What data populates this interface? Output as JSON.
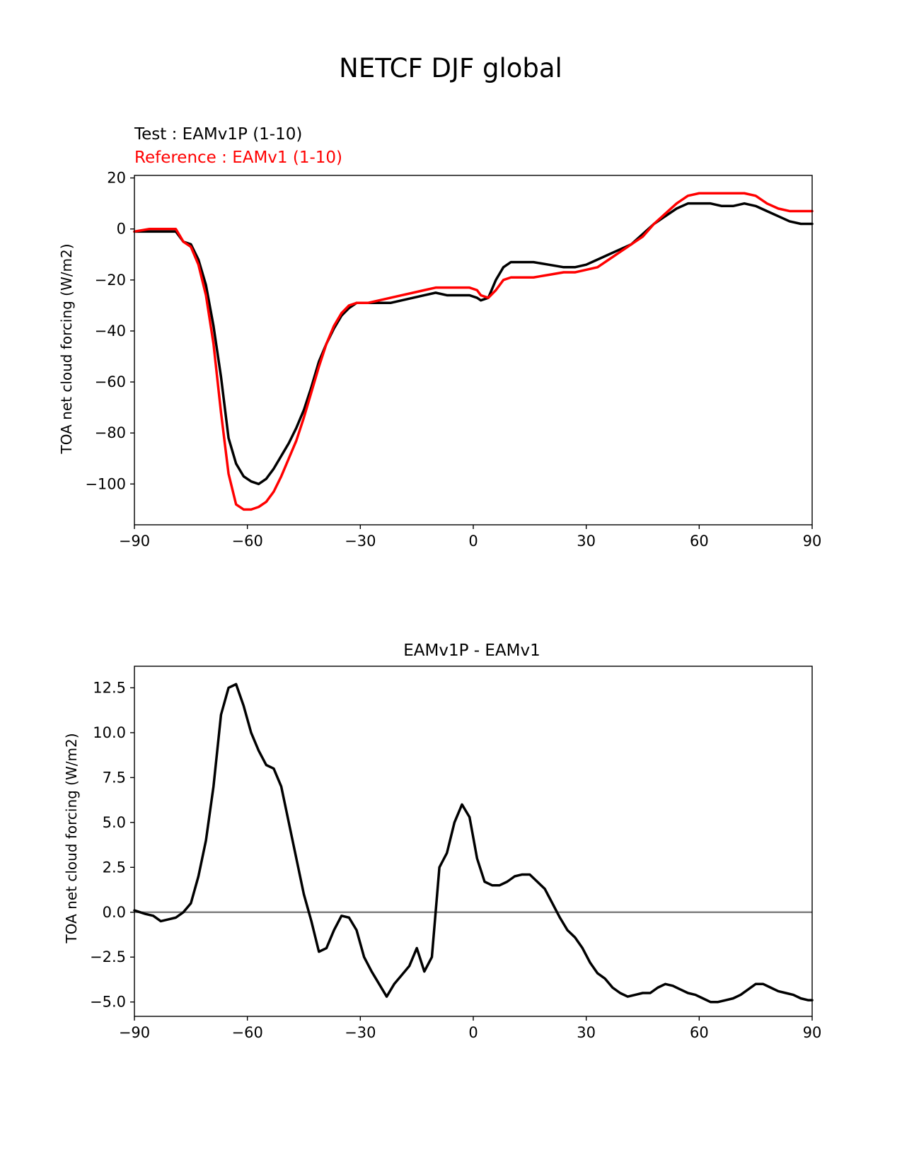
{
  "figure": {
    "title": "NETCF DJF global"
  },
  "chart_data": [
    {
      "type": "line",
      "test_label": "Test : EAMv1P (1-10)",
      "reference_label": "Reference : EAMv1 (1-10)",
      "xlabel": "",
      "ylabel": "TOA net cloud forcing (W/m2)",
      "xlim": [
        -90,
        90
      ],
      "ylim": [
        -116,
        21
      ],
      "xticks": [
        -90,
        -60,
        -30,
        0,
        30,
        60,
        90
      ],
      "xtick_labels": [
        "−90",
        "−60",
        "−30",
        "0",
        "30",
        "60",
        "90"
      ],
      "yticks": [
        20,
        0,
        -20,
        -40,
        -60,
        -80,
        -100
      ],
      "ytick_labels": [
        "20",
        "0",
        "−20",
        "−40",
        "−60",
        "−80",
        "−100"
      ],
      "grid": false,
      "series": [
        {
          "name": "Test : EAMv1P (1-10)",
          "color": "#000000",
          "x": [
            -90,
            -86,
            -82,
            -79,
            -77,
            -75,
            -73,
            -71,
            -69,
            -67,
            -65,
            -63,
            -61,
            -59,
            -57,
            -55,
            -53,
            -51,
            -49,
            -47,
            -45,
            -43,
            -41,
            -39,
            -37,
            -35,
            -33,
            -31,
            -28,
            -25,
            -22,
            -19,
            -16,
            -13,
            -10,
            -7,
            -4,
            -1,
            1,
            2,
            4,
            6,
            8,
            10,
            13,
            16,
            20,
            24,
            27,
            30,
            33,
            36,
            39,
            42,
            45,
            48,
            51,
            54,
            57,
            60,
            63,
            66,
            69,
            72,
            75,
            78,
            81,
            84,
            87,
            90
          ],
          "y": [
            -1,
            -1,
            -1,
            -1,
            -5,
            -6,
            -12,
            -22,
            -38,
            -58,
            -82,
            -92,
            -97,
            -99,
            -100,
            -98,
            -94,
            -89,
            -84,
            -78,
            -71,
            -62,
            -52,
            -45,
            -39,
            -34,
            -31,
            -29,
            -29,
            -29,
            -29,
            -28,
            -27,
            -26,
            -25,
            -26,
            -26,
            -26,
            -27,
            -28,
            -27,
            -20,
            -15,
            -13,
            -13,
            -13,
            -14,
            -15,
            -15,
            -14,
            -12,
            -10,
            -8,
            -6,
            -2,
            2,
            5,
            8,
            10,
            10,
            10,
            9,
            9,
            10,
            9,
            7,
            5,
            3,
            2,
            2
          ]
        },
        {
          "name": "Reference : EAMv1 (1-10)",
          "color": "#ff0000",
          "x": [
            -90,
            -86,
            -82,
            -79,
            -77,
            -75,
            -73,
            -71,
            -69,
            -67,
            -65,
            -63,
            -61,
            -59,
            -57,
            -55,
            -53,
            -51,
            -49,
            -47,
            -45,
            -43,
            -41,
            -39,
            -37,
            -35,
            -33,
            -31,
            -28,
            -25,
            -22,
            -19,
            -16,
            -13,
            -10,
            -7,
            -4,
            -1,
            1,
            2,
            4,
            6,
            8,
            10,
            13,
            16,
            20,
            24,
            27,
            30,
            33,
            36,
            39,
            42,
            45,
            48,
            51,
            54,
            57,
            60,
            63,
            66,
            69,
            72,
            75,
            78,
            81,
            84,
            87,
            90
          ],
          "y": [
            -1,
            0,
            0,
            0,
            -5,
            -7,
            -14,
            -26,
            -45,
            -72,
            -96,
            -108,
            -110,
            -110,
            -109,
            -107,
            -103,
            -97,
            -90,
            -83,
            -74,
            -64,
            -54,
            -45,
            -38,
            -33,
            -30,
            -29,
            -29,
            -28,
            -27,
            -26,
            -25,
            -24,
            -23,
            -23,
            -23,
            -23,
            -24,
            -26,
            -27,
            -24,
            -20,
            -19,
            -19,
            -19,
            -18,
            -17,
            -17,
            -16,
            -15,
            -12,
            -9,
            -6,
            -3,
            2,
            6,
            10,
            13,
            14,
            14,
            14,
            14,
            14,
            13,
            10,
            8,
            7,
            7,
            7
          ]
        }
      ]
    },
    {
      "type": "line",
      "title": "EAMv1P - EAMv1",
      "xlabel": "",
      "ylabel": "TOA net cloud forcing (W/m2)",
      "xlim": [
        -90,
        90
      ],
      "ylim": [
        -5.8,
        13.7
      ],
      "xticks": [
        -90,
        -60,
        -30,
        0,
        30,
        60,
        90
      ],
      "xtick_labels": [
        "−90",
        "−60",
        "−30",
        "0",
        "30",
        "60",
        "90"
      ],
      "yticks": [
        12.5,
        10.0,
        7.5,
        5.0,
        2.5,
        0.0,
        -2.5,
        -5.0
      ],
      "ytick_labels": [
        "12.5",
        "10.0",
        "7.5",
        "5.0",
        "2.5",
        "0.0",
        "−2.5",
        "−5.0"
      ],
      "grid": false,
      "zero_line_color": "#808080",
      "series": [
        {
          "color": "#000000",
          "x": [
            -90,
            -87,
            -85,
            -83,
            -81,
            -79,
            -77,
            -75,
            -73,
            -71,
            -69,
            -67,
            -65,
            -63,
            -61,
            -59,
            -57,
            -55,
            -53,
            -51,
            -49,
            -47,
            -45,
            -43,
            -41,
            -39,
            -37,
            -35,
            -33,
            -31,
            -29,
            -27,
            -25,
            -23,
            -21,
            -19,
            -17,
            -15,
            -13,
            -11,
            -9,
            -7,
            -5,
            -3,
            -1,
            1,
            3,
            5,
            7,
            9,
            11,
            13,
            15,
            17,
            19,
            21,
            23,
            25,
            27,
            29,
            31,
            33,
            35,
            37,
            39,
            41,
            43,
            45,
            47,
            49,
            51,
            53,
            55,
            57,
            59,
            61,
            63,
            65,
            67,
            69,
            71,
            73,
            75,
            77,
            79,
            81,
            83,
            85,
            87,
            89,
            90
          ],
          "y": [
            0.1,
            -0.1,
            -0.2,
            -0.5,
            -0.4,
            -0.3,
            0.0,
            0.5,
            2.0,
            4.0,
            7.0,
            11.0,
            12.5,
            12.7,
            11.5,
            10.0,
            9.0,
            8.2,
            8.0,
            7.0,
            5.0,
            3.0,
            1.0,
            -0.5,
            -2.2,
            -2.0,
            -1.0,
            -0.2,
            -0.3,
            -1.0,
            -2.5,
            -3.3,
            -4.0,
            -4.7,
            -4.0,
            -3.5,
            -3.0,
            -2.0,
            -3.3,
            -2.5,
            2.5,
            3.3,
            5.0,
            6.0,
            5.3,
            3.0,
            1.7,
            1.5,
            1.5,
            1.7,
            2.0,
            2.1,
            2.1,
            1.7,
            1.3,
            0.5,
            -0.3,
            -1.0,
            -1.4,
            -2.0,
            -2.8,
            -3.4,
            -3.7,
            -4.2,
            -4.5,
            -4.7,
            -4.6,
            -4.5,
            -4.5,
            -4.2,
            -4.0,
            -4.1,
            -4.3,
            -4.5,
            -4.6,
            -4.8,
            -5.0,
            -5.0,
            -4.9,
            -4.8,
            -4.6,
            -4.3,
            -4.0,
            -4.0,
            -4.2,
            -4.4,
            -4.5,
            -4.6,
            -4.8,
            -4.9,
            -4.9
          ]
        }
      ]
    }
  ]
}
